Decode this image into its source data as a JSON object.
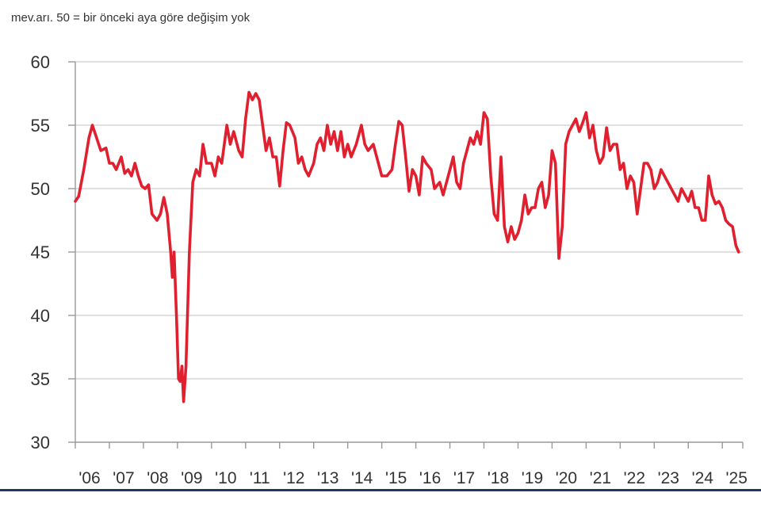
{
  "caption": "mev.arı. 50 = bir önceki aya göre değişim yok",
  "chart_data": {
    "type": "line",
    "ylim": [
      30,
      60
    ],
    "yticks": [
      "30",
      "35",
      "40",
      "45",
      "50",
      "55",
      "60"
    ],
    "xlim": [
      2006.0,
      2025.6
    ],
    "xtick_labels": [
      "'06",
      "'07",
      "'08",
      "'09",
      "'10",
      "'11",
      "'12",
      "'13",
      "'14",
      "'15",
      "'16",
      "'17",
      "'18",
      "'19",
      "'20",
      "'21",
      "'22",
      "'23",
      "'24",
      "'25"
    ],
    "grid": true,
    "series": [
      {
        "color": "#e0202e",
        "points": [
          [
            2006.0,
            49.0
          ],
          [
            2006.1,
            49.4
          ],
          [
            2006.25,
            51.5
          ],
          [
            2006.4,
            54.0
          ],
          [
            2006.5,
            55.0
          ],
          [
            2006.6,
            54.2
          ],
          [
            2006.75,
            53.0
          ],
          [
            2006.9,
            53.2
          ],
          [
            2007.0,
            52.0
          ],
          [
            2007.1,
            52.0
          ],
          [
            2007.2,
            51.5
          ],
          [
            2007.35,
            52.5
          ],
          [
            2007.45,
            51.2
          ],
          [
            2007.55,
            51.5
          ],
          [
            2007.65,
            51.0
          ],
          [
            2007.75,
            52.0
          ],
          [
            2007.85,
            51.0
          ],
          [
            2007.95,
            50.2
          ],
          [
            2008.05,
            50.0
          ],
          [
            2008.15,
            50.3
          ],
          [
            2008.25,
            48.0
          ],
          [
            2008.4,
            47.5
          ],
          [
            2008.5,
            48.0
          ],
          [
            2008.6,
            49.3
          ],
          [
            2008.7,
            48.0
          ],
          [
            2008.8,
            45.0
          ],
          [
            2008.85,
            43.0
          ],
          [
            2008.9,
            45.0
          ],
          [
            2008.97,
            40.0
          ],
          [
            2009.03,
            35.0
          ],
          [
            2009.08,
            34.8
          ],
          [
            2009.13,
            36.0
          ],
          [
            2009.18,
            33.2
          ],
          [
            2009.25,
            36.0
          ],
          [
            2009.35,
            45.0
          ],
          [
            2009.45,
            50.5
          ],
          [
            2009.55,
            51.5
          ],
          [
            2009.65,
            51.0
          ],
          [
            2009.75,
            53.5
          ],
          [
            2009.85,
            52.0
          ],
          [
            2010.0,
            52.0
          ],
          [
            2010.1,
            51.0
          ],
          [
            2010.2,
            52.5
          ],
          [
            2010.3,
            52.0
          ],
          [
            2010.45,
            55.0
          ],
          [
            2010.55,
            53.5
          ],
          [
            2010.65,
            54.5
          ],
          [
            2010.8,
            53.0
          ],
          [
            2010.9,
            52.5
          ],
          [
            2011.0,
            55.5
          ],
          [
            2011.1,
            57.6
          ],
          [
            2011.2,
            57.0
          ],
          [
            2011.3,
            57.5
          ],
          [
            2011.4,
            57.0
          ],
          [
            2011.5,
            55.0
          ],
          [
            2011.6,
            53.0
          ],
          [
            2011.7,
            54.0
          ],
          [
            2011.8,
            52.5
          ],
          [
            2011.9,
            52.5
          ],
          [
            2012.0,
            50.2
          ],
          [
            2012.1,
            53.0
          ],
          [
            2012.2,
            55.2
          ],
          [
            2012.3,
            55.0
          ],
          [
            2012.45,
            54.0
          ],
          [
            2012.55,
            52.0
          ],
          [
            2012.65,
            52.5
          ],
          [
            2012.75,
            51.5
          ],
          [
            2012.85,
            51.0
          ],
          [
            2013.0,
            52.0
          ],
          [
            2013.1,
            53.5
          ],
          [
            2013.2,
            54.0
          ],
          [
            2013.3,
            53.0
          ],
          [
            2013.4,
            55.0
          ],
          [
            2013.5,
            53.5
          ],
          [
            2013.6,
            54.5
          ],
          [
            2013.7,
            53.0
          ],
          [
            2013.8,
            54.5
          ],
          [
            2013.9,
            52.5
          ],
          [
            2014.0,
            53.5
          ],
          [
            2014.1,
            52.5
          ],
          [
            2014.25,
            53.5
          ],
          [
            2014.4,
            55.0
          ],
          [
            2014.5,
            53.5
          ],
          [
            2014.6,
            53.0
          ],
          [
            2014.75,
            53.5
          ],
          [
            2014.85,
            52.5
          ],
          [
            2015.0,
            51.0
          ],
          [
            2015.15,
            51.0
          ],
          [
            2015.3,
            51.5
          ],
          [
            2015.4,
            53.5
          ],
          [
            2015.5,
            55.3
          ],
          [
            2015.6,
            55.0
          ],
          [
            2015.7,
            52.5
          ],
          [
            2015.8,
            49.8
          ],
          [
            2015.9,
            51.5
          ],
          [
            2016.0,
            51.0
          ],
          [
            2016.1,
            49.5
          ],
          [
            2016.2,
            52.5
          ],
          [
            2016.3,
            52.0
          ],
          [
            2016.45,
            51.5
          ],
          [
            2016.55,
            50.0
          ],
          [
            2016.7,
            50.5
          ],
          [
            2016.8,
            49.5
          ],
          [
            2016.9,
            50.5
          ],
          [
            2017.0,
            51.5
          ],
          [
            2017.1,
            52.5
          ],
          [
            2017.2,
            50.5
          ],
          [
            2017.3,
            50.0
          ],
          [
            2017.4,
            52.0
          ],
          [
            2017.5,
            53.0
          ],
          [
            2017.6,
            54.0
          ],
          [
            2017.7,
            53.5
          ],
          [
            2017.8,
            54.5
          ],
          [
            2017.9,
            53.5
          ],
          [
            2018.0,
            56.0
          ],
          [
            2018.1,
            55.5
          ],
          [
            2018.2,
            51.0
          ],
          [
            2018.3,
            48.0
          ],
          [
            2018.4,
            47.5
          ],
          [
            2018.5,
            52.5
          ],
          [
            2018.6,
            47.0
          ],
          [
            2018.7,
            45.8
          ],
          [
            2018.8,
            47.0
          ],
          [
            2018.9,
            46.0
          ],
          [
            2019.0,
            46.5
          ],
          [
            2019.1,
            47.5
          ],
          [
            2019.2,
            49.5
          ],
          [
            2019.3,
            48.0
          ],
          [
            2019.4,
            48.5
          ],
          [
            2019.5,
            48.5
          ],
          [
            2019.6,
            50.0
          ],
          [
            2019.7,
            50.5
          ],
          [
            2019.8,
            48.5
          ],
          [
            2019.9,
            49.5
          ],
          [
            2020.0,
            53.0
          ],
          [
            2020.1,
            52.0
          ],
          [
            2020.2,
            44.5
          ],
          [
            2020.3,
            47.0
          ],
          [
            2020.4,
            53.5
          ],
          [
            2020.5,
            54.5
          ],
          [
            2020.6,
            55.0
          ],
          [
            2020.7,
            55.5
          ],
          [
            2020.8,
            54.5
          ],
          [
            2020.9,
            55.2
          ],
          [
            2021.0,
            56.0
          ],
          [
            2021.1,
            54.0
          ],
          [
            2021.2,
            55.0
          ],
          [
            2021.3,
            53.0
          ],
          [
            2021.4,
            52.0
          ],
          [
            2021.5,
            52.5
          ],
          [
            2021.6,
            54.8
          ],
          [
            2021.7,
            53.0
          ],
          [
            2021.8,
            53.5
          ],
          [
            2021.9,
            53.5
          ],
          [
            2022.0,
            51.5
          ],
          [
            2022.1,
            52.0
          ],
          [
            2022.2,
            50.0
          ],
          [
            2022.3,
            51.0
          ],
          [
            2022.4,
            50.5
          ],
          [
            2022.5,
            48.0
          ],
          [
            2022.6,
            50.0
          ],
          [
            2022.7,
            52.0
          ],
          [
            2022.8,
            52.0
          ],
          [
            2022.9,
            51.5
          ],
          [
            2023.0,
            50.0
          ],
          [
            2023.1,
            50.5
          ],
          [
            2023.2,
            51.5
          ],
          [
            2023.3,
            51.0
          ],
          [
            2023.4,
            50.5
          ],
          [
            2023.5,
            50.0
          ],
          [
            2023.6,
            49.5
          ],
          [
            2023.7,
            49.0
          ],
          [
            2023.8,
            50.0
          ],
          [
            2023.9,
            49.5
          ],
          [
            2024.0,
            49.0
          ],
          [
            2024.1,
            49.8
          ],
          [
            2024.2,
            48.5
          ],
          [
            2024.3,
            48.5
          ],
          [
            2024.4,
            47.5
          ],
          [
            2024.5,
            47.5
          ],
          [
            2024.6,
            51.0
          ],
          [
            2024.7,
            49.5
          ],
          [
            2024.8,
            48.8
          ],
          [
            2024.9,
            49.0
          ],
          [
            2025.0,
            48.5
          ],
          [
            2025.1,
            47.5
          ],
          [
            2025.2,
            47.2
          ],
          [
            2025.3,
            47.0
          ],
          [
            2025.4,
            45.5
          ],
          [
            2025.48,
            45.0
          ]
        ]
      }
    ]
  }
}
